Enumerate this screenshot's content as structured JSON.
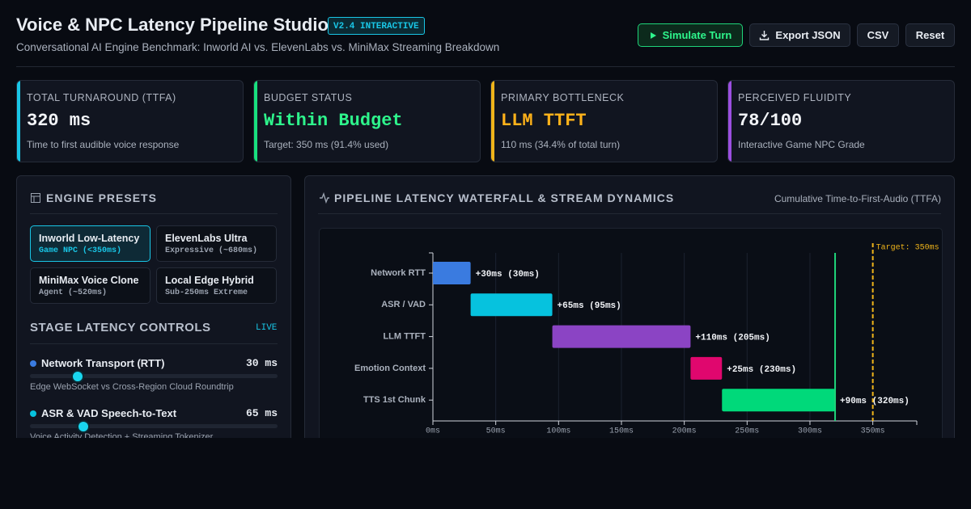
{
  "header": {
    "title": "Voice & NPC Latency Pipeline Studio",
    "badge": "V2.4 INTERACTIVE",
    "subtitle": "Conversational AI Engine Benchmark: Inworld AI vs. ElevenLabs vs. MiniMax Streaming Breakdown",
    "buttons": [
      "Simulate Turn",
      "Export JSON",
      "CSV",
      "Reset"
    ]
  },
  "kpis": [
    {
      "label": "TOTAL TURNAROUND (TTFA)",
      "value": "320 ms",
      "note": "Time to first audible voice response"
    },
    {
      "label": "BUDGET STATUS",
      "value": "Within Budget",
      "note": "Target: 350 ms (91.4% used)"
    },
    {
      "label": "PRIMARY BOTTLENECK",
      "value": "LLM TTFT",
      "note": "110 ms (34.4% of total turn)"
    },
    {
      "label": "PERCEIVED FLUIDITY",
      "value": "78/100",
      "note": "Interactive Game NPC Grade"
    }
  ],
  "presets": {
    "title": "ENGINE PRESETS",
    "items": [
      {
        "name": "Inworld Low-Latency",
        "sub": "Game NPC (<350ms)"
      },
      {
        "name": "ElevenLabs Ultra",
        "sub": "Expressive (~680ms)"
      },
      {
        "name": "MiniMax Voice Clone",
        "sub": "Agent (~520ms)"
      },
      {
        "name": "Local Edge Hybrid",
        "sub": "Sub-250ms Extreme"
      }
    ]
  },
  "controls": {
    "title": "STAGE LATENCY CONTROLS",
    "live": "LIVE",
    "items": [
      {
        "name": "Network Transport (RTT)",
        "value": "30 ms",
        "note": "Edge WebSocket vs Cross-Region Cloud Roundtrip"
      },
      {
        "name": "ASR & VAD Speech-to-Text",
        "value": "65 ms",
        "note": "Voice Activity Detection + Streaming Tokenizer"
      }
    ]
  },
  "chart_data": {
    "type": "waterfall",
    "title": "PIPELINE LATENCY WATERFALL & STREAM DYNAMICS",
    "subtitle": "Cumulative Time-to-First-Audio (TTFA)",
    "categories": [
      "Network RTT",
      "ASR / VAD",
      "LLM TTFT",
      "Emotion Context",
      "TTS 1st Chunk"
    ],
    "values": [
      30,
      65,
      110,
      25,
      90
    ],
    "value_labels": [
      "+30ms (30ms)",
      "+65ms (95ms)",
      "+110ms (205ms)",
      "+25ms (230ms)",
      "+90ms (320ms)"
    ],
    "colors": [
      "#3a7be0",
      "#06c2de",
      "#8b44c4",
      "#e0076e",
      "#00d97a"
    ],
    "xlim": [
      0,
      385
    ],
    "xticks": [
      {
        "value": 0,
        "label": "0ms"
      },
      {
        "value": 50,
        "label": "50ms"
      },
      {
        "value": 100,
        "label": "100ms"
      },
      {
        "value": 150,
        "label": "150ms"
      },
      {
        "value": 200,
        "label": "200ms"
      },
      {
        "value": 250,
        "label": "250ms"
      },
      {
        "value": 300,
        "label": "300ms"
      },
      {
        "value": 350,
        "label": "350ms"
      }
    ],
    "grid": true,
    "target": {
      "value": 350,
      "label": "Target: 350ms",
      "color": "#f0b41a"
    },
    "total_color": "#1fd47a"
  }
}
